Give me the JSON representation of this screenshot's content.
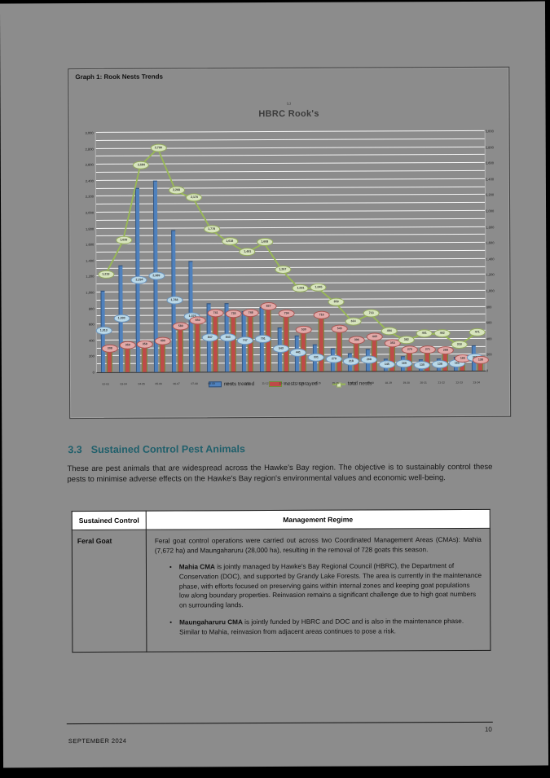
{
  "graph_box": {
    "caption": "Graph 1: Rook Nests Trends",
    "ornament": "ω"
  },
  "chart_data": {
    "type": "bar",
    "title": "HBRC Rook's",
    "categories": [
      "02-03",
      "03-04",
      "04-05",
      "05-06",
      "06-07",
      "07-08",
      "08-09",
      "09-10",
      "10-11",
      "11-12",
      "12-13",
      "13-14",
      "14-15",
      "15-16",
      "16-17",
      "17-18",
      "18-19",
      "19-20",
      "20-21",
      "21-22",
      "22-23",
      "23-24"
    ],
    "series": [
      {
        "name": "nests treated",
        "type": "bar",
        "color": "#4f81bd",
        "values": [
          1013,
          1330,
          2294,
          2389,
          1768,
          1376,
          847,
          843,
          747,
          791,
          543,
          441,
          331,
          279,
          218,
          268,
          145,
          169,
          130,
          138,
          165,
          308
        ]
      },
      {
        "name": "nests sprayed",
        "type": "bar",
        "color": "#be4b48",
        "values": [
          308,
          350,
          358,
          400,
          580,
          650,
          741,
          735,
          748,
          827,
          734,
          530,
          716,
          545,
          396,
          443,
          353,
          275,
          271,
          268,
          165,
          138
        ]
      },
      {
        "name": "total nests",
        "type": "line",
        "color": "#98b954",
        "values": [
          1219,
          1639,
          2584,
          2799,
          2268,
          2170,
          1778,
          1618,
          1491,
          1608,
          1267,
          1031,
          1045,
          859,
          614,
          713,
          494,
          382,
          461,
          462,
          318,
          471
        ]
      }
    ],
    "ylim": [
      0,
      3000
    ],
    "ytick_step": 200,
    "grid": "horizontal-white",
    "legend_position": "bottom"
  },
  "section": {
    "number": "3.3",
    "heading": "Sustained Control Pest Animals",
    "paragraph": "These are pest animals that are widespread across the Hawke's Bay region. The objective is to sustainably control these pests to minimise adverse effects on the Hawke's Bay region's environmental values and economic well-being."
  },
  "table": {
    "headers": [
      "Sustained Control",
      "Management Regime"
    ],
    "rows": [
      {
        "animal": "Feral Goat",
        "intro": "Feral goat control operations were carried out across two Coordinated Management Areas (CMAs): Mahia (7,672 ha) and Maungaharuru (28,000 ha), resulting in the removal of 728 goats this season.",
        "bullets": [
          {
            "lead": "Mahia CMA",
            "text": " is jointly managed by Hawke's Bay Regional Council (HBRC), the Department of Conservation (DOC), and supported by Grandy Lake Forests. The area is currently in the maintenance phase, with efforts focused on preserving gains within internal zones and keeping goat populations low along boundary properties. Reinvasion remains a significant challenge due to high goat numbers on surrounding lands."
          },
          {
            "lead": "Maungaharuru CMA",
            "text": " is jointly funded by HBRC and DOC and is also in the maintenance phase. Similar to Mahia, reinvasion from adjacent areas continues to pose a risk."
          }
        ]
      }
    ]
  },
  "footer": {
    "date": "SEPTEMBER 2024",
    "page_number": "10"
  }
}
